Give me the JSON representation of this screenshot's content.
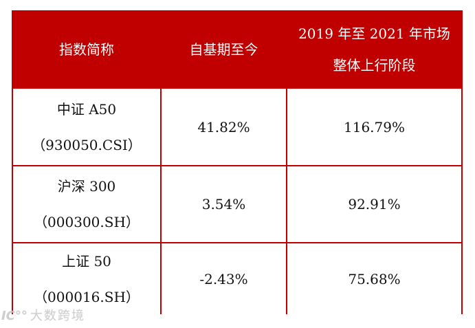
{
  "colors": {
    "header_bg": "#c00000",
    "header_text": "#ffffff",
    "border": "#c00000",
    "body_text": "#111111",
    "watermark": "#c6c6c6"
  },
  "table": {
    "header": {
      "index_name": "指数简称",
      "since_base": "自基期至今",
      "uptrend_line1": "2019 年至 2021 年市场",
      "uptrend_line2": "整体上行阶段"
    },
    "rows": [
      {
        "name": "中证 A50",
        "code": "（930050.CSI）",
        "since_base": "41.82%",
        "uptrend": "116.79%"
      },
      {
        "name": "沪深 300",
        "code": "（000300.SH）",
        "since_base": "3.54%",
        "uptrend": "92.91%"
      },
      {
        "name": "上证 50",
        "code": "（000016.SH）",
        "since_base": "-2.43%",
        "uptrend": "75.68%"
      }
    ]
  },
  "watermark": {
    "logo": "IC°°",
    "text": "大数跨境"
  },
  "chart_data": {
    "type": "table",
    "title": "",
    "columns": [
      "指数简称",
      "自基期至今",
      "2019 年至 2021 年市场整体上行阶段"
    ],
    "rows": [
      [
        "中证 A50（930050.CSI）",
        "41.82%",
        "116.79%"
      ],
      [
        "沪深 300（000300.SH）",
        "3.54%",
        "92.91%"
      ],
      [
        "上证 50（000016.SH）",
        "-2.43%",
        "75.68%"
      ]
    ]
  }
}
